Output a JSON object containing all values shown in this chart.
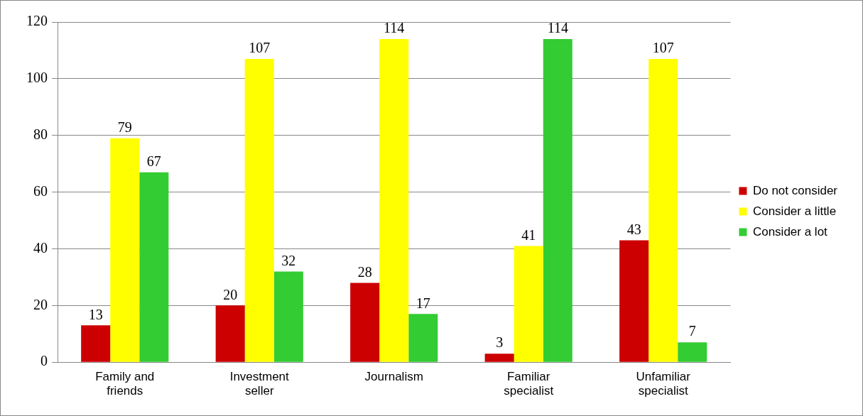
{
  "chart_data": {
    "type": "bar",
    "categories": [
      "Family and friends",
      "Investment seller",
      "Journalism",
      "Familiar specialist",
      "Unfamiliar specialist"
    ],
    "series": [
      {
        "name": "Do not consider",
        "color": "#cc0000",
        "values": [
          13,
          20,
          28,
          3,
          43
        ]
      },
      {
        "name": "Consider a little",
        "color": "#ffff00",
        "values": [
          79,
          107,
          114,
          41,
          107
        ]
      },
      {
        "name": "Consider a lot",
        "color": "#33cc33",
        "values": [
          67,
          32,
          17,
          114,
          7
        ]
      }
    ],
    "ylim": [
      0,
      120
    ],
    "yticks": [
      0,
      20,
      40,
      60,
      80,
      100,
      120
    ],
    "grid": "y",
    "legend": "right",
    "data_labels": true
  }
}
